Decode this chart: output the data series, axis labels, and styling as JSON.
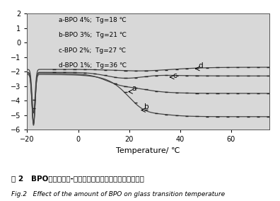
{
  "xlim": [
    -20,
    75
  ],
  "ylim": [
    -6,
    2
  ],
  "xlabel": "Temperature/ ℃",
  "yticks": [
    -6,
    -5,
    -4,
    -3,
    -2,
    -1,
    0,
    1,
    2
  ],
  "xticks": [
    -20,
    0,
    20,
    40,
    60
  ],
  "legend": [
    "a-BPO 4%;  Tg=18 ℃",
    "b-BPO 3%;  Tg=21 ℃",
    "c-BPO 2%;  Tg=27 ℃",
    "d-BPO 1%;  Tg=36 ℃"
  ],
  "title1": "图 2   BPO用量对环氧-丙烯酸酯树脂玻璃化转变温度的影响",
  "title2": "Fig.2   Effect of the amount of BPO on glass transition temperature",
  "line_color": "#444444",
  "bg_color": "#d8d8d8"
}
